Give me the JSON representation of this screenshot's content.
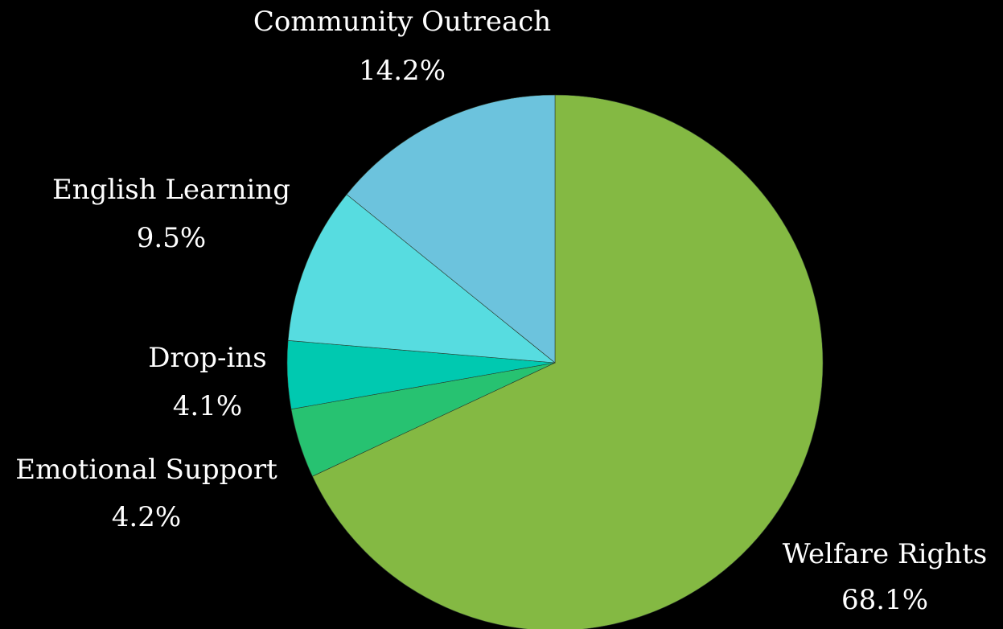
{
  "chart_data": {
    "type": "pie",
    "title": "",
    "start": "top",
    "direction": "clockwise",
    "slices": [
      {
        "label": "Welfare Rights",
        "value": 68.1,
        "value_label": "68.1%",
        "color": "#84b943"
      },
      {
        "label": "Emotional Support",
        "value": 4.2,
        "value_label": "4.2%",
        "color": "#27c271"
      },
      {
        "label": "Drop-ins",
        "value": 4.1,
        "value_label": "4.1%",
        "color": "#00c9b0"
      },
      {
        "label": "English Learning",
        "value": 9.5,
        "value_label": "9.5%",
        "color": "#57dce0"
      },
      {
        "label": "Community Outreach",
        "value": 14.2,
        "value_label": "14.2%",
        "color": "#6cc3dd"
      }
    ]
  }
}
